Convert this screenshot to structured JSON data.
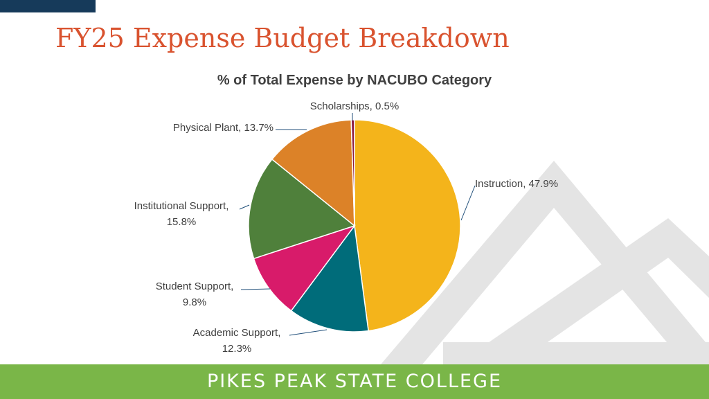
{
  "slide": {
    "title": "FY25 Expense Budget Breakdown",
    "footer_text": "PIKES PEAK STATE COLLEGE"
  },
  "colors": {
    "title": "#d9532f",
    "accent_bar": "#163a5a",
    "footer": "#7ab648",
    "mountains": "#e4e4e4",
    "label_text": "#404040",
    "leader_line": "#1f4e79"
  },
  "chart_data": {
    "type": "pie",
    "title": "% of Total Expense by NACUBO Category",
    "legend": "none",
    "slices": [
      {
        "label": "Instruction",
        "value": 47.9,
        "display": "47.9%",
        "color": "#f4b41b"
      },
      {
        "label": "Academic Support",
        "value": 12.3,
        "display": "12.3%",
        "color": "#006c7a"
      },
      {
        "label": "Student Support",
        "value": 9.8,
        "display": "9.8%",
        "color": "#d81b6a"
      },
      {
        "label": "Institutional Support",
        "value": 15.8,
        "display": "15.8%",
        "color": "#4f803b"
      },
      {
        "label": "Physical Plant",
        "value": 13.7,
        "display": "13.7%",
        "color": "#dc8228"
      },
      {
        "label": "Scholarships",
        "value": 0.5,
        "display": "0.5%",
        "color": "#8c1d40"
      }
    ]
  }
}
